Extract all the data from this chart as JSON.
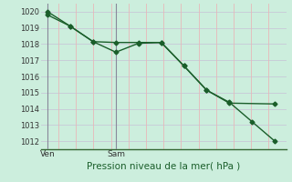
{
  "line1_x": [
    0,
    1,
    2,
    3,
    4,
    5,
    6,
    7,
    8,
    9,
    10
  ],
  "line1_y": [
    1020.0,
    1019.1,
    1018.15,
    1017.5,
    1018.05,
    1018.1,
    1016.65,
    1015.15,
    1014.4,
    1013.2,
    1012.0
  ],
  "line2_x": [
    0,
    1,
    2,
    3,
    4,
    5,
    6,
    7,
    8,
    10
  ],
  "line2_y": [
    1019.8,
    1019.1,
    1018.15,
    1018.1,
    1018.1,
    1018.1,
    1016.65,
    1015.15,
    1014.35,
    1014.3
  ],
  "color": "#1a5e2a",
  "bg_color": "#cceedd",
  "plot_bg": "#cceedd",
  "grid_color_h": "#c8c8d8",
  "grid_color_v": "#e8b8b8",
  "xlabel": "Pression niveau de la mer( hPa )",
  "xtick_labels": [
    "Ven",
    "Sam"
  ],
  "xtick_positions": [
    0,
    3
  ],
  "vline_positions": [
    0,
    3
  ],
  "ylim": [
    1011.5,
    1020.5
  ],
  "xlim": [
    -0.3,
    10.5
  ],
  "yticks": [
    1012,
    1013,
    1014,
    1015,
    1016,
    1017,
    1018,
    1019,
    1020
  ],
  "marker": "D",
  "markersize": 2.5,
  "linewidth": 1.0
}
